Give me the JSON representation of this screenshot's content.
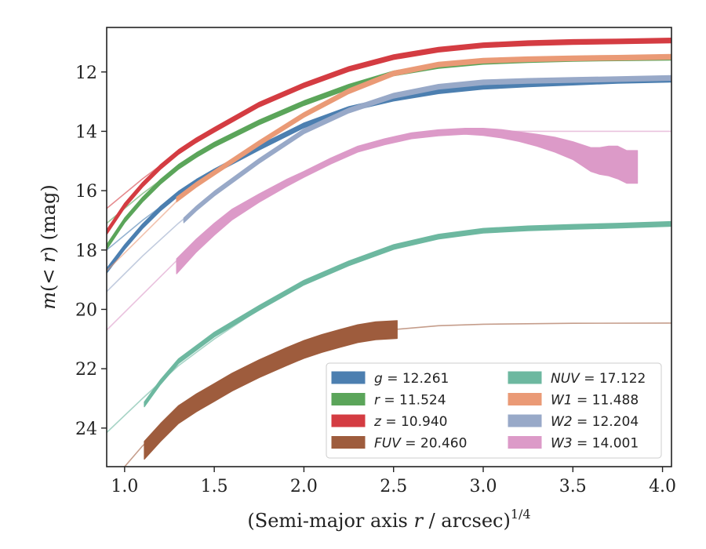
{
  "chart_data": {
    "type": "line",
    "xlabel": "(Semi-major axis r / arcsec)",
    "xlabel_var": "r",
    "xlabel_exp": "1/4",
    "ylabel": "m(< r) (mag)",
    "xlim": [
      0.9,
      4.05
    ],
    "ylim": [
      25.3,
      10.5
    ],
    "y_inverted": true,
    "x_ticks": [
      "1.0",
      "1.5",
      "2.0",
      "2.5",
      "3.0",
      "3.5",
      "4.0"
    ],
    "y_ticks": [
      "12",
      "14",
      "16",
      "18",
      "20",
      "22",
      "24"
    ],
    "grid": false,
    "legend": {
      "position": "bottom-right",
      "columns": 2
    },
    "series": [
      {
        "name": "g",
        "total": "12.261",
        "color": "#4c7fb0",
        "band": 0.08,
        "ext": [
          [
            0.9,
            18.0
          ],
          [
            1.1,
            17.0
          ],
          [
            1.3,
            16.1
          ],
          [
            1.5,
            15.35
          ],
          [
            1.75,
            14.5
          ],
          [
            2.0,
            13.75
          ],
          [
            2.25,
            13.2
          ],
          [
            2.5,
            12.85
          ],
          [
            2.75,
            12.62
          ],
          [
            3.0,
            12.48
          ],
          [
            3.5,
            12.35
          ],
          [
            4.05,
            12.26
          ]
        ],
        "x": [
          0.9,
          1.0,
          1.1,
          1.2,
          1.3,
          1.4,
          1.5,
          1.75,
          2.0,
          2.25,
          2.5,
          2.75,
          3.0,
          3.25,
          3.5,
          3.75,
          4.05
        ],
        "y": [
          18.7,
          17.9,
          17.2,
          16.6,
          16.1,
          15.7,
          15.35,
          14.55,
          13.8,
          13.25,
          12.9,
          12.65,
          12.5,
          12.42,
          12.36,
          12.3,
          12.26
        ]
      },
      {
        "name": "r",
        "total": "11.524",
        "color": "#5ba55a",
        "band": 0.08,
        "ext": [
          [
            0.9,
            17.1
          ],
          [
            1.1,
            16.1
          ],
          [
            1.3,
            15.2
          ],
          [
            1.5,
            14.5
          ],
          [
            1.75,
            13.75
          ],
          [
            2.0,
            13.05
          ],
          [
            2.25,
            12.5
          ],
          [
            2.5,
            12.05
          ],
          [
            2.75,
            11.8
          ],
          [
            3.0,
            11.66
          ],
          [
            3.5,
            11.57
          ],
          [
            4.05,
            11.52
          ]
        ],
        "x": [
          0.9,
          1.0,
          1.1,
          1.2,
          1.3,
          1.4,
          1.5,
          1.75,
          2.0,
          2.25,
          2.5,
          2.75,
          3.0,
          3.25,
          3.5,
          3.75,
          4.05
        ],
        "y": [
          17.9,
          17.0,
          16.3,
          15.7,
          15.2,
          14.8,
          14.45,
          13.7,
          13.05,
          12.5,
          12.05,
          11.8,
          11.66,
          11.6,
          11.56,
          11.54,
          11.52
        ]
      },
      {
        "name": "z",
        "total": "10.940",
        "color": "#d43c42",
        "band": 0.08,
        "ext": [
          [
            0.9,
            16.6
          ],
          [
            1.1,
            15.6
          ],
          [
            1.3,
            14.7
          ],
          [
            1.5,
            13.95
          ],
          [
            1.75,
            13.1
          ],
          [
            2.0,
            12.45
          ],
          [
            2.25,
            11.9
          ],
          [
            2.5,
            11.5
          ],
          [
            2.75,
            11.25
          ],
          [
            3.0,
            11.1
          ],
          [
            3.5,
            11.0
          ],
          [
            4.05,
            10.94
          ]
        ],
        "x": [
          0.9,
          1.0,
          1.1,
          1.2,
          1.3,
          1.4,
          1.5,
          1.75,
          2.0,
          2.25,
          2.5,
          2.75,
          3.0,
          3.25,
          3.5,
          3.75,
          4.05
        ],
        "y": [
          17.4,
          16.5,
          15.8,
          15.2,
          14.7,
          14.3,
          13.95,
          13.1,
          12.45,
          11.9,
          11.5,
          11.25,
          11.1,
          11.03,
          10.99,
          10.97,
          10.94
        ]
      },
      {
        "name": "FUV",
        "total": "20.460",
        "color": "#9e5c3d",
        "band": 0.3,
        "ext": [
          [
            1.0,
            25.3
          ],
          [
            1.1,
            24.6
          ],
          [
            1.3,
            23.5
          ],
          [
            1.5,
            22.7
          ],
          [
            1.75,
            21.9
          ],
          [
            2.0,
            21.3
          ],
          [
            2.25,
            20.9
          ],
          [
            2.5,
            20.68
          ],
          [
            2.75,
            20.55
          ],
          [
            3.0,
            20.5
          ],
          [
            3.5,
            20.47
          ],
          [
            4.05,
            20.46
          ]
        ],
        "x": [
          1.11,
          1.2,
          1.3,
          1.4,
          1.5,
          1.6,
          1.75,
          1.9,
          2.0,
          2.1,
          2.2,
          2.3,
          2.4,
          2.52
        ],
        "y": [
          24.75,
          24.15,
          23.55,
          23.15,
          22.8,
          22.45,
          22.0,
          21.6,
          21.35,
          21.15,
          20.98,
          20.82,
          20.72,
          20.68
        ]
      },
      {
        "name": "NUV",
        "total": "17.122",
        "color": "#6db8a0",
        "band": 0.08,
        "ext": [
          [
            0.9,
            24.15
          ],
          [
            1.1,
            23.0
          ],
          [
            1.3,
            21.9
          ],
          [
            1.5,
            21.0
          ],
          [
            1.75,
            20.0
          ],
          [
            2.0,
            19.15
          ],
          [
            2.25,
            18.45
          ],
          [
            2.5,
            17.9
          ],
          [
            2.75,
            17.55
          ],
          [
            3.0,
            17.35
          ],
          [
            3.5,
            17.22
          ],
          [
            4.05,
            17.12
          ]
        ],
        "x": [
          1.11,
          1.2,
          1.3,
          1.4,
          1.5,
          1.75,
          2.0,
          2.25,
          2.5,
          2.75,
          3.0,
          3.25,
          3.5,
          3.75,
          4.05
        ],
        "y": [
          23.2,
          22.45,
          21.75,
          21.3,
          20.85,
          19.95,
          19.1,
          18.45,
          17.9,
          17.55,
          17.35,
          17.27,
          17.22,
          17.18,
          17.12
        ]
      },
      {
        "name": "W1",
        "total": "11.488",
        "color": "#ea9a76",
        "band": 0.08,
        "ext": [
          [
            0.9,
            18.7
          ],
          [
            1.1,
            17.5
          ],
          [
            1.3,
            16.3
          ],
          [
            1.5,
            15.4
          ],
          [
            1.75,
            14.4
          ],
          [
            2.0,
            13.45
          ],
          [
            2.25,
            12.65
          ],
          [
            2.5,
            12.05
          ],
          [
            2.75,
            11.75
          ],
          [
            3.0,
            11.62
          ],
          [
            3.5,
            11.54
          ],
          [
            4.05,
            11.49
          ]
        ],
        "x": [
          1.29,
          1.4,
          1.5,
          1.75,
          2.0,
          2.25,
          2.5,
          2.75,
          3.0,
          3.25,
          3.5,
          3.75,
          4.05
        ],
        "y": [
          16.3,
          15.8,
          15.4,
          14.4,
          13.45,
          12.65,
          12.05,
          11.75,
          11.62,
          11.57,
          11.54,
          11.52,
          11.49
        ]
      },
      {
        "name": "W2",
        "total": "12.204",
        "color": "#98a9c8",
        "band": 0.08,
        "ext": [
          [
            0.9,
            19.4
          ],
          [
            1.1,
            18.2
          ],
          [
            1.3,
            17.1
          ],
          [
            1.5,
            16.1
          ],
          [
            1.75,
            15.0
          ],
          [
            2.0,
            14.0
          ],
          [
            2.25,
            13.3
          ],
          [
            2.5,
            12.8
          ],
          [
            2.75,
            12.5
          ],
          [
            3.0,
            12.35
          ],
          [
            3.5,
            12.27
          ],
          [
            4.05,
            12.2
          ]
        ],
        "x": [
          1.33,
          1.4,
          1.5,
          1.75,
          2.0,
          2.25,
          2.5,
          2.75,
          3.0,
          3.25,
          3.5,
          3.75,
          4.05
        ],
        "y": [
          17.0,
          16.6,
          16.1,
          15.0,
          14.0,
          13.3,
          12.8,
          12.5,
          12.35,
          12.3,
          12.27,
          12.24,
          12.2
        ]
      },
      {
        "name": "W3",
        "total": "14.001",
        "color": "#dc9ac8",
        "band": 0.2,
        "ext": [
          [
            0.9,
            20.7
          ],
          [
            1.1,
            19.5
          ],
          [
            1.3,
            18.3
          ],
          [
            1.5,
            17.3
          ],
          [
            1.75,
            16.3
          ],
          [
            2.0,
            15.5
          ],
          [
            2.25,
            14.75
          ],
          [
            2.5,
            14.25
          ],
          [
            2.75,
            14.05
          ],
          [
            3.0,
            14.0
          ],
          [
            3.5,
            14.0
          ],
          [
            4.05,
            14.0
          ]
        ],
        "x": [
          1.29,
          1.4,
          1.5,
          1.6,
          1.75,
          1.9,
          2.0,
          2.15,
          2.3,
          2.45,
          2.6,
          2.75,
          2.9,
          3.0,
          3.1,
          3.2,
          3.3,
          3.4,
          3.5,
          3.55,
          3.6,
          3.65,
          3.7,
          3.75,
          3.8,
          3.86
        ],
        "y": [
          18.55,
          17.85,
          17.3,
          16.8,
          16.25,
          15.75,
          15.45,
          15.0,
          14.6,
          14.35,
          14.15,
          14.05,
          14.0,
          14.02,
          14.08,
          14.18,
          14.3,
          14.45,
          14.65,
          14.8,
          14.95,
          15.0,
          15.0,
          15.05,
          15.2,
          15.2
        ],
        "band_y": [
          0.25,
          0.22,
          0.2,
          0.18,
          0.14,
          0.12,
          0.1,
          0.1,
          0.1,
          0.1,
          0.1,
          0.1,
          0.1,
          0.12,
          0.14,
          0.16,
          0.2,
          0.25,
          0.3,
          0.35,
          0.4,
          0.45,
          0.5,
          0.55,
          0.55,
          0.55
        ]
      }
    ]
  }
}
